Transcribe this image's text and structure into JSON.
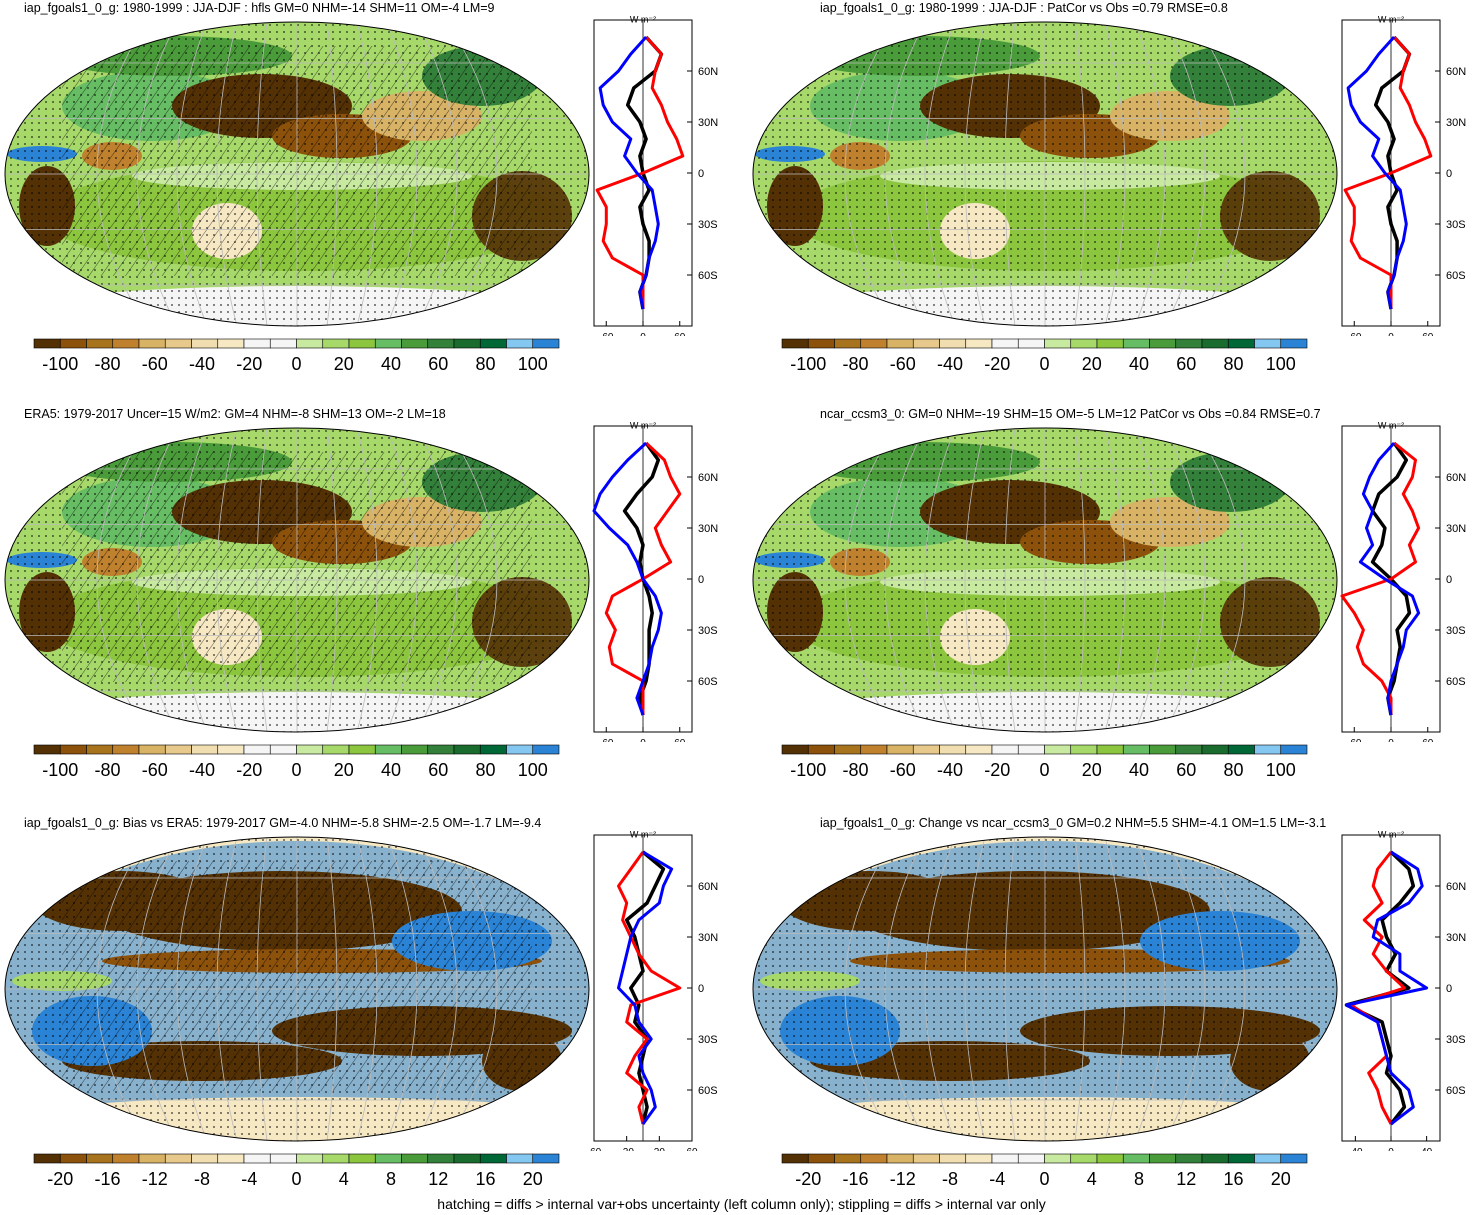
{
  "colorbar_colors": [
    "#543005",
    "#8c510a",
    "#a8731d",
    "#bf812d",
    "#d8b365",
    "#e6c98b",
    "#f0deb0",
    "#f6e8c3",
    "#f5f5f5",
    "#f5f5f5",
    "#c7e9a0",
    "#a6d96a",
    "#8cc63f",
    "#66bd63",
    "#4a9b3a",
    "#33803a",
    "#1a6b2e",
    "#006837",
    "#84c7f0",
    "#2b83d6"
  ],
  "colors": {
    "model": "#000000",
    "obs": "#ff0000",
    "other": "#0000ff",
    "grid": "#bbbbbb"
  },
  "panels": [
    {
      "title": "iap_fgoals1_0_g: 1980-1999 : JJA-DJF : hfls GM=0 NHM=-14 SHM=11 OM=-4 LM=9",
      "colorbar_labels": [
        "-100",
        "-80",
        "-60",
        "-40",
        "-20",
        "0",
        "20",
        "40",
        "60",
        "80",
        "100"
      ],
      "profile_unit": "W m⁻²",
      "profile_xticks": [
        "-60",
        "0",
        "60"
      ],
      "profile_yticks": [
        "60N",
        "30N",
        "0",
        "30S",
        "60S"
      ],
      "hatched": true
    },
    {
      "title": "iap_fgoals1_0_g: 1980-1999 : JJA-DJF : PatCor vs Obs =0.79 RMSE=0.8",
      "colorbar_labels": [
        "-100",
        "-80",
        "-60",
        "-40",
        "-20",
        "0",
        "20",
        "40",
        "60",
        "80",
        "100"
      ],
      "profile_unit": "W m⁻²",
      "profile_xticks": [
        "-60",
        "0",
        "60"
      ],
      "profile_yticks": [
        "60N",
        "30N",
        "0",
        "30S",
        "60S"
      ],
      "hatched": false
    },
    {
      "title": "ERA5: 1979-2017 Uncer=15 W/m2: GM=4 NHM=-8 SHM=13 OM=-2 LM=18",
      "colorbar_labels": [
        "-100",
        "-80",
        "-60",
        "-40",
        "-20",
        "0",
        "20",
        "40",
        "60",
        "80",
        "100"
      ],
      "profile_unit": "W m⁻²",
      "profile_xticks": [
        "-60",
        "0",
        "60"
      ],
      "profile_yticks": [
        "60N",
        "30N",
        "0",
        "30S",
        "60S"
      ],
      "hatched": true
    },
    {
      "title": "ncar_ccsm3_0: GM=0 NHM=-19 SHM=15 OM=-5 LM=12 PatCor vs Obs =0.84 RMSE=0.7",
      "colorbar_labels": [
        "-100",
        "-80",
        "-60",
        "-40",
        "-20",
        "0",
        "20",
        "40",
        "60",
        "80",
        "100"
      ],
      "profile_unit": "W m⁻²",
      "profile_xticks": [
        "-60",
        "0",
        "60"
      ],
      "profile_yticks": [
        "60N",
        "30N",
        "0",
        "30S",
        "60S"
      ],
      "hatched": false
    },
    {
      "title": "iap_fgoals1_0_g: Bias vs ERA5: 1979-2017 GM=-4.0 NHM=-5.8 SHM=-2.5 OM=-1.7 LM=-9.4",
      "colorbar_labels": [
        "-20",
        "-16",
        "-12",
        "-8",
        "-4",
        "0",
        "4",
        "8",
        "12",
        "16",
        "20"
      ],
      "profile_unit": "W m⁻²",
      "profile_xticks": [
        "-60",
        "-20",
        "20",
        "60"
      ],
      "profile_yticks": [
        "60N",
        "30N",
        "0",
        "30S",
        "60S"
      ],
      "hatched": true
    },
    {
      "title": "iap_fgoals1_0_g: Change vs ncar_ccsm3_0 GM=0.2 NHM=5.5 SHM=-4.1 OM=1.5 LM=-3.1",
      "colorbar_labels": [
        "-20",
        "-16",
        "-12",
        "-8",
        "-4",
        "0",
        "4",
        "8",
        "12",
        "16",
        "20"
      ],
      "profile_unit": "W m⁻²",
      "profile_xticks": [
        "-40",
        "0",
        "40"
      ],
      "profile_yticks": [
        "60N",
        "30N",
        "0",
        "30S",
        "60S"
      ],
      "hatched": false
    }
  ],
  "chart_data": [
    {
      "type": "heatmap",
      "title": "iap_fgoals1_0_g: 1980-1999 : JJA-DJF : hfls GM=0 NHM=-14 SHM=11 OM=-4 LM=9",
      "colorbar_range": [
        -100,
        100
      ],
      "colorbar_step": 10,
      "profile": {
        "xlim": [
          -80,
          80
        ],
        "y_lat": [
          80,
          70,
          60,
          50,
          40,
          30,
          20,
          10,
          0,
          -10,
          -20,
          -30,
          -40,
          -50,
          -60,
          -70,
          -80
        ],
        "series": [
          {
            "color": "black",
            "values": [
              5,
              30,
              20,
              -15,
              -25,
              -5,
              5,
              -5,
              0,
              10,
              -5,
              0,
              10,
              10,
              5,
              -5,
              0
            ]
          },
          {
            "color": "red",
            "values": [
              5,
              30,
              20,
              15,
              30,
              40,
              55,
              65,
              0,
              -75,
              -60,
              -60,
              -65,
              -50,
              0,
              0,
              0
            ]
          },
          {
            "color": "blue",
            "values": [
              5,
              -20,
              -40,
              -70,
              -65,
              -50,
              -20,
              -30,
              -10,
              15,
              20,
              25,
              20,
              10,
              5,
              -5,
              0
            ]
          }
        ]
      }
    },
    {
      "type": "heatmap",
      "title": "iap_fgoals1_0_g: 1980-1999 : JJA-DJF : PatCor vs Obs =0.79 RMSE=0.8",
      "colorbar_range": [
        -100,
        100
      ],
      "colorbar_step": 10,
      "profile": {
        "xlim": [
          -80,
          80
        ],
        "y_lat": [
          80,
          70,
          60,
          50,
          40,
          30,
          20,
          10,
          0,
          -10,
          -20,
          -30,
          -40,
          -50,
          -60,
          -70,
          -80
        ],
        "series": [
          {
            "color": "black",
            "values": [
              5,
              30,
              20,
              -15,
              -25,
              -5,
              5,
              -5,
              0,
              10,
              -5,
              0,
              10,
              10,
              5,
              -5,
              0
            ]
          },
          {
            "color": "red",
            "values": [
              5,
              30,
              20,
              15,
              30,
              40,
              55,
              65,
              0,
              -75,
              -60,
              -60,
              -65,
              -50,
              0,
              0,
              0
            ]
          },
          {
            "color": "blue",
            "values": [
              5,
              -20,
              -40,
              -70,
              -65,
              -50,
              -20,
              -30,
              -10,
              15,
              20,
              25,
              20,
              10,
              5,
              -5,
              0
            ]
          }
        ]
      }
    },
    {
      "type": "heatmap",
      "title": "ERA5: 1979-2017 Uncer=15 W/m2: GM=4 NHM=-8 SHM=13 OM=-2 LM=18",
      "colorbar_range": [
        -100,
        100
      ],
      "colorbar_step": 10,
      "profile": {
        "xlim": [
          -80,
          80
        ],
        "y_lat": [
          80,
          70,
          60,
          50,
          40,
          30,
          20,
          10,
          0,
          -10,
          -20,
          -30,
          -40,
          -50,
          -60,
          -70,
          -80
        ],
        "series": [
          {
            "color": "black",
            "values": [
              5,
              25,
              15,
              -10,
              -30,
              -10,
              0,
              -5,
              0,
              10,
              15,
              10,
              10,
              10,
              5,
              -5,
              0
            ]
          },
          {
            "color": "red",
            "values": [
              5,
              35,
              45,
              60,
              40,
              20,
              30,
              45,
              0,
              -50,
              -60,
              -45,
              -55,
              -50,
              0,
              0,
              0
            ]
          },
          {
            "color": "blue",
            "values": [
              5,
              -25,
              -50,
              -70,
              -80,
              -55,
              -25,
              -10,
              0,
              20,
              30,
              25,
              15,
              10,
              0,
              -10,
              0
            ]
          }
        ]
      }
    },
    {
      "type": "heatmap",
      "title": "ncar_ccsm3_0: GM=0 NHM=-19 SHM=15 OM=-5 LM=12 PatCor vs Obs =0.84 RMSE=0.7",
      "colorbar_range": [
        -100,
        100
      ],
      "colorbar_step": 10,
      "profile": {
        "xlim": [
          -80,
          80
        ],
        "y_lat": [
          80,
          70,
          60,
          50,
          40,
          30,
          20,
          10,
          0,
          -10,
          -20,
          -30,
          -40,
          -50,
          -60,
          -70,
          -80
        ],
        "series": [
          {
            "color": "black",
            "values": [
              5,
              25,
              10,
              -20,
              -30,
              -10,
              -15,
              -30,
              0,
              25,
              30,
              10,
              15,
              10,
              5,
              -5,
              0
            ]
          },
          {
            "color": "red",
            "values": [
              5,
              40,
              35,
              20,
              35,
              45,
              30,
              40,
              0,
              -80,
              -60,
              -45,
              -55,
              -45,
              -15,
              0,
              0
            ]
          },
          {
            "color": "blue",
            "values": [
              5,
              -20,
              -35,
              -45,
              -30,
              -40,
              -30,
              -50,
              -10,
              35,
              45,
              25,
              20,
              10,
              0,
              -5,
              0
            ]
          }
        ]
      }
    },
    {
      "type": "heatmap",
      "title": "iap_fgoals1_0_g: Bias vs ERA5: 1979-2017 GM=-4.0 NHM=-5.8 SHM=-2.5 OM=-1.7 LM=-9.4",
      "colorbar_range": [
        -20,
        20
      ],
      "colorbar_step": 2,
      "profile": {
        "xlim": [
          -60,
          60
        ],
        "y_lat": [
          80,
          70,
          60,
          50,
          40,
          30,
          20,
          10,
          0,
          -10,
          -20,
          -30,
          -40,
          -50,
          -60,
          -70,
          -80
        ],
        "series": [
          {
            "color": "black",
            "values": [
              0,
              25,
              15,
              5,
              -20,
              -10,
              -5,
              0,
              -15,
              -5,
              -10,
              5,
              0,
              -5,
              0,
              5,
              0
            ]
          },
          {
            "color": "red",
            "values": [
              0,
              -15,
              -30,
              -20,
              -25,
              -15,
              -5,
              10,
              45,
              -15,
              -20,
              5,
              -10,
              -20,
              5,
              -5,
              0
            ]
          },
          {
            "color": "blue",
            "values": [
              0,
              35,
              25,
              20,
              -5,
              -15,
              -20,
              -25,
              -30,
              -10,
              -5,
              10,
              -5,
              0,
              10,
              15,
              0
            ]
          }
        ]
      }
    },
    {
      "type": "heatmap",
      "title": "iap_fgoals1_0_g: Change vs ncar_ccsm3_0 GM=0.2 NHM=5.5 SHM=-4.1 OM=1.5 LM=-3.1",
      "colorbar_range": [
        -20,
        20
      ],
      "colorbar_step": 2,
      "profile": {
        "xlim": [
          -55,
          55
        ],
        "y_lat": [
          80,
          70,
          60,
          50,
          40,
          30,
          20,
          10,
          0,
          -10,
          -20,
          -30,
          -40,
          -50,
          -60,
          -70,
          -80
        ],
        "series": [
          {
            "color": "black",
            "values": [
              0,
              20,
              25,
              10,
              -10,
              -5,
              5,
              -5,
              20,
              -50,
              -10,
              -5,
              0,
              -5,
              10,
              15,
              0
            ]
          },
          {
            "color": "red",
            "values": [
              0,
              -15,
              -20,
              -10,
              -30,
              -10,
              -20,
              -5,
              15,
              -45,
              -15,
              -10,
              -5,
              -25,
              -15,
              -10,
              0
            ]
          },
          {
            "color": "blue",
            "values": [
              0,
              30,
              35,
              20,
              -15,
              -20,
              10,
              10,
              40,
              -50,
              -15,
              -10,
              -5,
              0,
              20,
              25,
              0
            ]
          }
        ]
      }
    }
  ],
  "footer": "hatching = diffs > internal var+obs uncertainty (left column only); stippling = diffs > internal var only"
}
